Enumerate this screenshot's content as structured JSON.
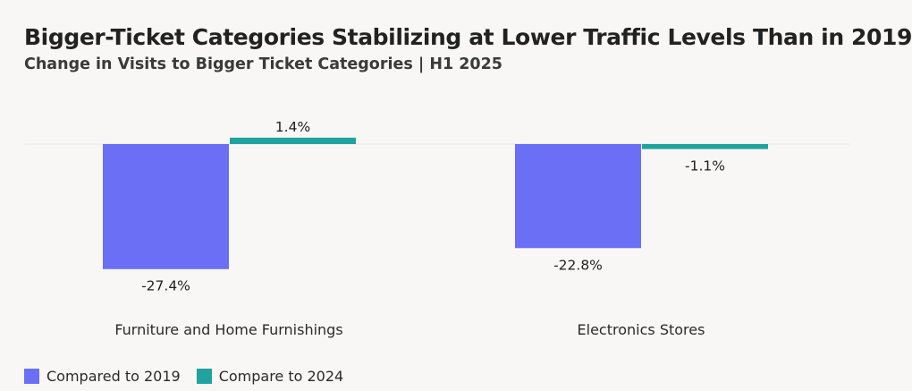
{
  "chart_data": {
    "type": "bar",
    "title": "Bigger-Ticket Categories Stabilizing at Lower Traffic Levels Than in 2019",
    "subtitle": "Change in Visits to Bigger Ticket Categories | H1 2025",
    "xlabel": "",
    "ylabel": "",
    "ylim": [
      -30,
      3
    ],
    "grid": false,
    "legend_position": "bottom-left",
    "categories": [
      "Furniture and Home Furnishings",
      "Electronics Stores"
    ],
    "series": [
      {
        "name": "Compared to 2019",
        "color": "#6b6ff5",
        "values": [
          -27.4,
          -22.8
        ],
        "labels": [
          "-27.4%",
          "-22.8%"
        ]
      },
      {
        "name": "Compare to 2024",
        "color": "#20a39e",
        "values": [
          1.4,
          -1.1
        ],
        "labels": [
          "1.4%",
          "-1.1%"
        ]
      }
    ]
  }
}
